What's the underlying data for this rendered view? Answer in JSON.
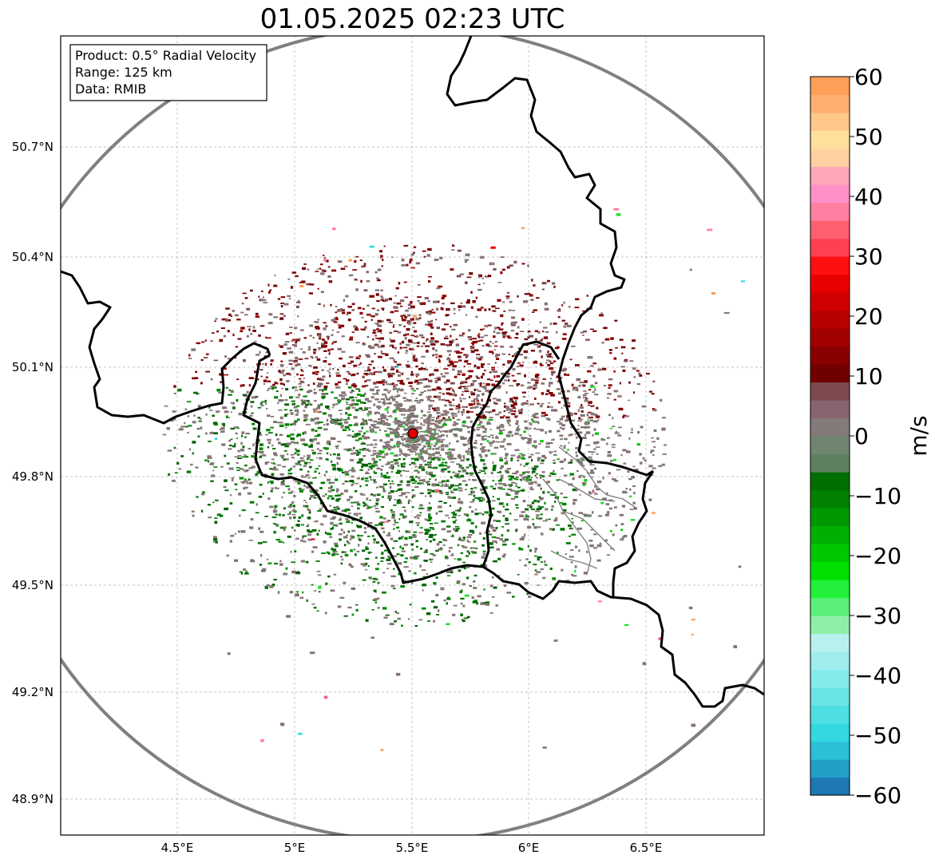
{
  "title": "01.05.2025 02:23 UTC",
  "info": {
    "product": "Product: 0.5° Radial Velocity",
    "range": "Range: 125 km",
    "source": "Data: RMIB"
  },
  "lon_ticks": [
    "4.5°E",
    "5°E",
    "5.5°E",
    "6°E",
    "6.5°E"
  ],
  "lat_ticks": [
    "50.7°N",
    "50.4°N",
    "50.1°N",
    "49.8°N",
    "49.5°N",
    "49.2°N",
    "48.9°N"
  ],
  "colorbar": {
    "label": "m/s",
    "min": -60,
    "max": 60,
    "ticks": [
      "60",
      "50",
      "40",
      "30",
      "20",
      "10",
      "0",
      "−10",
      "−20",
      "−30",
      "−40",
      "−50",
      "−60"
    ],
    "colors": [
      "#1f77b4",
      "#24a0c8",
      "#2bc0d8",
      "#33d8e0",
      "#4fdfe2",
      "#6be4e6",
      "#86e9ea",
      "#a0eded",
      "#b8f0f0",
      "#8ef0a8",
      "#5cf07a",
      "#22f03a",
      "#00e000",
      "#00c800",
      "#00b000",
      "#009800",
      "#008200",
      "#006e00",
      "#5f8060",
      "#6f8570",
      "#857a7a",
      "#886470",
      "#7d4a50",
      "#700000",
      "#880000",
      "#a00000",
      "#b80000",
      "#d00000",
      "#e80000",
      "#ff1010",
      "#ff4050",
      "#ff6070",
      "#ff80a0",
      "#ff90c8",
      "#ffa8b8",
      "#ffd0a0",
      "#ffe09a",
      "#ffc888",
      "#ffb070",
      "#ff9f58"
    ]
  },
  "radar_site": {
    "label": "radar-site"
  },
  "colors": {
    "border": "#000000",
    "grid": "#b0b0b0",
    "range_ring": "#808080",
    "site_marker": "#e00000"
  }
}
